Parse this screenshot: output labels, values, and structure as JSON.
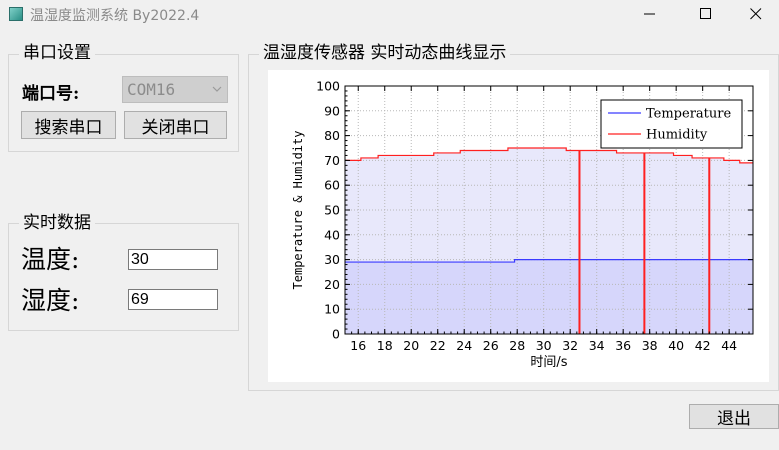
{
  "window": {
    "title": "温湿度监测系统 By2022.4"
  },
  "serial_group": {
    "title": "串口设置",
    "port_label": "端口号:",
    "port_value": "COM16",
    "search_button": "搜索串口",
    "close_button": "关闭串口"
  },
  "realtime_group": {
    "title": "实时数据",
    "temperature_label": "温度:",
    "temperature_value": "30",
    "humidity_label": "湿度:",
    "humidity_value": "69"
  },
  "chart_group": {
    "title": "温湿度传感器 实时动态曲线显示"
  },
  "exit_button": "退出",
  "chart_data": {
    "type": "line",
    "xlabel": "时间/s",
    "ylabel": "Temperature & Humidity",
    "xlim": [
      15,
      45.8
    ],
    "ylim": [
      0,
      100
    ],
    "x_ticks": [
      16,
      18,
      20,
      22,
      24,
      26,
      28,
      30,
      32,
      34,
      36,
      38,
      40,
      42,
      44
    ],
    "y_ticks": [
      0,
      10,
      20,
      30,
      40,
      50,
      60,
      70,
      80,
      90,
      100
    ],
    "grid": true,
    "legend_position": "top-right",
    "series": [
      {
        "name": "Temperature",
        "color": "#3a3aff",
        "fill": "#d6d6fb",
        "x": [
          15,
          27.8,
          27.8,
          45.8
        ],
        "y": [
          29,
          29,
          30,
          30
        ]
      },
      {
        "name": "Humidity",
        "color": "#ff2020",
        "fill": "#e8e8fb",
        "x": [
          15,
          16.2,
          16.2,
          17.5,
          17.5,
          21.7,
          21.7,
          23.7,
          23.7,
          27.3,
          27.3,
          31.7,
          31.7,
          35.5,
          35.5,
          37.5,
          37.5,
          39.8,
          39.8,
          41.2,
          41.2,
          42.3,
          42.3,
          43.6,
          43.6,
          44.8,
          44.8,
          45.8
        ],
        "y": [
          70,
          70,
          71,
          71,
          72,
          72,
          73,
          73,
          74,
          74,
          75,
          75,
          74,
          74,
          73,
          73,
          73,
          73,
          72,
          72,
          71,
          71,
          71,
          71,
          70,
          70,
          69,
          69
        ]
      }
    ],
    "spikes": [
      {
        "x": 32.7,
        "y0": 0,
        "y1": 74
      },
      {
        "x": 37.6,
        "y0": 0,
        "y1": 73
      },
      {
        "x": 42.5,
        "y0": 0,
        "y1": 71
      }
    ]
  }
}
